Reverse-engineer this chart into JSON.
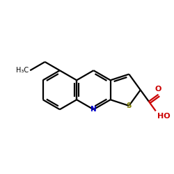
{
  "bg_color": "#ffffff",
  "bond_color": "#000000",
  "N_color": "#0000cc",
  "S_color": "#808000",
  "O_color": "#cc0000",
  "line_width": 1.6,
  "dbo": 0.038,
  "figsize": [
    2.5,
    2.5
  ],
  "dpi": 100,
  "xlim": [
    -1.55,
    1.25
  ],
  "ylim": [
    -0.65,
    0.75
  ],
  "r": 0.33,
  "chain_L": 0.29,
  "cooh_L": 0.24,
  "font_size_atom": 7.5,
  "font_size_ch3": 7.0
}
